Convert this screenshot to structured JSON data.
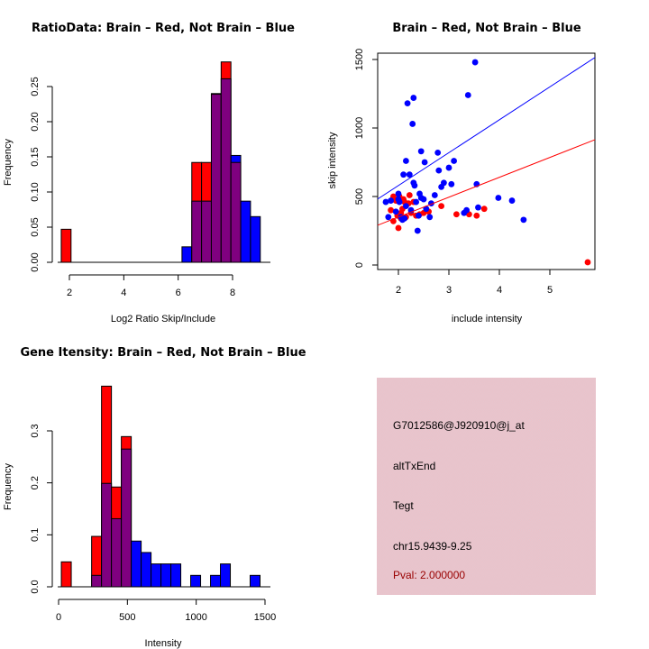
{
  "chart_data": [
    {
      "id": "ratio",
      "type": "bar",
      "title": "RatioData: Brain – Red, Not Brain – Blue",
      "xlabel": "Log2 Ratio Skip/Include",
      "ylabel": "Frequency",
      "xlim": [
        1.7,
        9.0
      ],
      "ylim": [
        0,
        0.25
      ],
      "xticks": [
        2,
        4,
        6,
        8
      ],
      "xtick_labels": [
        "2",
        "4",
        "6",
        "8"
      ],
      "yticks": [
        0,
        0.05,
        0.1,
        0.15,
        0.2,
        0.25
      ],
      "ytick_labels": [
        "0.00",
        "0.05",
        "0.10",
        "0.15",
        "0.20",
        "0.25"
      ],
      "bin_width": 0.36,
      "series": [
        {
          "name": "Brain",
          "color": "#ff0000",
          "bins": [
            {
              "x0": 1.7,
              "value": 0.047
            },
            {
              "x0": 6.5,
              "value": 0.142
            },
            {
              "x0": 6.86,
              "value": 0.142
            },
            {
              "x0": 7.22,
              "value": 0.24
            },
            {
              "x0": 7.58,
              "value": 0.285
            },
            {
              "x0": 7.94,
              "value": 0.142
            }
          ]
        },
        {
          "name": "Not Brain",
          "color": "#0000ff",
          "bins": [
            {
              "x0": 6.14,
              "value": 0.022
            },
            {
              "x0": 6.5,
              "value": 0.087
            },
            {
              "x0": 6.86,
              "value": 0.087
            },
            {
              "x0": 7.22,
              "value": 0.239
            },
            {
              "x0": 7.58,
              "value": 0.261
            },
            {
              "x0": 7.94,
              "value": 0.152
            },
            {
              "x0": 8.3,
              "value": 0.087
            },
            {
              "x0": 8.66,
              "value": 0.065
            }
          ]
        }
      ],
      "overlap_color": "#7f007f"
    },
    {
      "id": "scatter",
      "type": "scatter",
      "title": "Brain – Red, Not Brain – Blue",
      "xlabel": "include intensity",
      "ylabel": "skip intensity",
      "xlim": [
        1.6,
        5.9
      ],
      "ylim": [
        -30,
        1560
      ],
      "xticks": [
        2,
        3,
        4,
        5
      ],
      "xtick_labels": [
        "2",
        "3",
        "4",
        "5"
      ],
      "yticks": [
        0,
        500,
        1000,
        1500
      ],
      "ytick_labels": [
        "0",
        "500",
        "1000",
        "1500"
      ],
      "series": [
        {
          "name": "Brain",
          "color": "#ff0000",
          "points": [
            [
              1.85,
              400
            ],
            [
              1.9,
              500
            ],
            [
              1.95,
              470
            ],
            [
              1.98,
              360
            ],
            [
              2.0,
              270
            ],
            [
              2.02,
              500
            ],
            [
              2.05,
              380
            ],
            [
              2.08,
              410
            ],
            [
              2.1,
              480
            ],
            [
              2.12,
              460
            ],
            [
              2.15,
              350
            ],
            [
              2.2,
              450
            ],
            [
              2.22,
              510
            ],
            [
              2.25,
              380
            ],
            [
              2.3,
              460
            ],
            [
              2.35,
              360
            ],
            [
              2.42,
              370
            ],
            [
              2.5,
              380
            ],
            [
              2.6,
              390
            ],
            [
              2.85,
              430
            ],
            [
              3.15,
              370
            ],
            [
              3.4,
              370
            ],
            [
              3.55,
              360
            ],
            [
              3.7,
              410
            ],
            [
              1.9,
              320
            ],
            [
              2.05,
              340
            ],
            [
              5.75,
              20
            ]
          ],
          "fit": {
            "intercept": 60,
            "slope": 145
          }
        },
        {
          "name": "Not Brain",
          "color": "#0000ff",
          "points": [
            [
              1.75,
              460
            ],
            [
              1.8,
              350
            ],
            [
              1.85,
              470
            ],
            [
              1.95,
              390
            ],
            [
              2.0,
              520
            ],
            [
              2.0,
              480
            ],
            [
              2.02,
              460
            ],
            [
              2.05,
              350
            ],
            [
              2.08,
              330
            ],
            [
              2.1,
              660
            ],
            [
              2.12,
              340
            ],
            [
              2.15,
              430
            ],
            [
              2.15,
              760
            ],
            [
              2.18,
              1180
            ],
            [
              2.22,
              660
            ],
            [
              2.25,
              400
            ],
            [
              2.28,
              1030
            ],
            [
              2.3,
              600
            ],
            [
              2.3,
              1220
            ],
            [
              2.32,
              580
            ],
            [
              2.35,
              460
            ],
            [
              2.38,
              250
            ],
            [
              2.4,
              360
            ],
            [
              2.42,
              520
            ],
            [
              2.45,
              830
            ],
            [
              2.45,
              490
            ],
            [
              2.5,
              480
            ],
            [
              2.52,
              750
            ],
            [
              2.55,
              410
            ],
            [
              2.62,
              350
            ],
            [
              2.65,
              450
            ],
            [
              2.72,
              510
            ],
            [
              2.78,
              820
            ],
            [
              2.8,
              690
            ],
            [
              2.85,
              570
            ],
            [
              2.9,
              600
            ],
            [
              3.0,
              710
            ],
            [
              3.05,
              590
            ],
            [
              3.1,
              760
            ],
            [
              3.3,
              380
            ],
            [
              3.35,
              400
            ],
            [
              3.38,
              1240
            ],
            [
              3.52,
              1480
            ],
            [
              3.55,
              590
            ],
            [
              3.58,
              420
            ],
            [
              3.98,
              490
            ],
            [
              4.25,
              470
            ],
            [
              4.48,
              330
            ]
          ],
          "fit": {
            "intercept": 100,
            "slope": 240
          }
        }
      ]
    },
    {
      "id": "intensity",
      "type": "bar",
      "title": "Gene Itensity: Brain – Red, Not Brain – Blue",
      "xlabel": "Intensity",
      "ylabel": "Frequency",
      "xlim": [
        20,
        1530
      ],
      "ylim": [
        0,
        0.3
      ],
      "xticks": [
        0,
        500,
        1000,
        1500
      ],
      "xtick_labels": [
        "0",
        "500",
        "1000",
        "1500"
      ],
      "yticks": [
        0,
        0.1,
        0.2,
        0.3
      ],
      "ytick_labels": [
        "0.0",
        "0.1",
        "0.2",
        "0.3"
      ],
      "bin_width": 72,
      "series": [
        {
          "name": "Brain",
          "color": "#ff0000",
          "bins": [
            {
              "x0": 20,
              "value": 0.048
            },
            {
              "x0": 240,
              "value": 0.097
            },
            {
              "x0": 312,
              "value": 0.386
            },
            {
              "x0": 384,
              "value": 0.192
            },
            {
              "x0": 456,
              "value": 0.289
            }
          ]
        },
        {
          "name": "Not Brain",
          "color": "#0000ff",
          "bins": [
            {
              "x0": 240,
              "value": 0.022
            },
            {
              "x0": 312,
              "value": 0.199
            },
            {
              "x0": 384,
              "value": 0.131
            },
            {
              "x0": 456,
              "value": 0.265
            },
            {
              "x0": 528,
              "value": 0.088
            },
            {
              "x0": 600,
              "value": 0.066
            },
            {
              "x0": 672,
              "value": 0.044
            },
            {
              "x0": 744,
              "value": 0.044
            },
            {
              "x0": 816,
              "value": 0.044
            },
            {
              "x0": 960,
              "value": 0.022
            },
            {
              "x0": 1104,
              "value": 0.022
            },
            {
              "x0": 1176,
              "value": 0.044
            },
            {
              "x0": 1392,
              "value": 0.022
            }
          ]
        }
      ],
      "overlap_color": "#7f007f"
    }
  ],
  "info_panel": {
    "background": "#e8c4cc",
    "probe_id": "G7012586@J920910@j_at",
    "event_type": "altTxEnd",
    "gene": "Tegt",
    "location": "chr15.9439-9.25",
    "pval": "Pval: 2.000000",
    "pval_color": "#990000"
  }
}
